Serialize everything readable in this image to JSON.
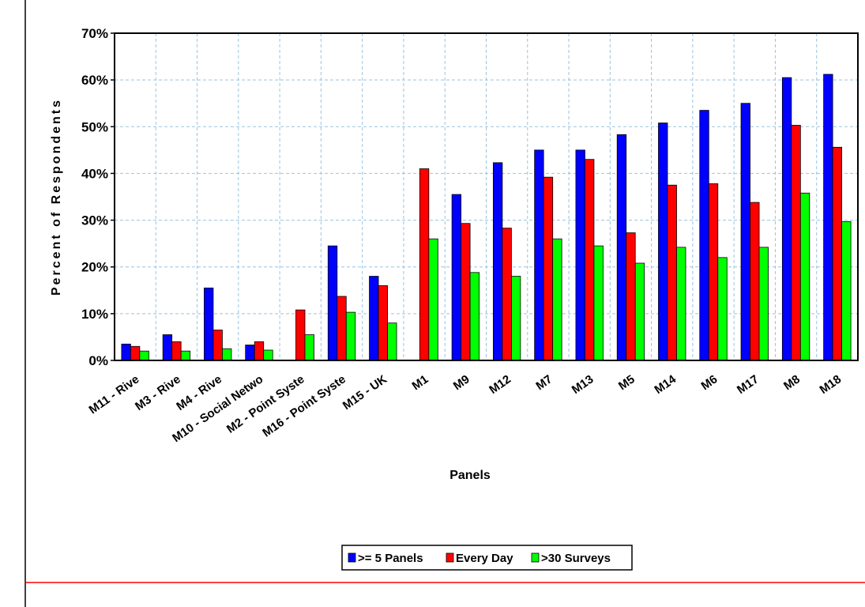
{
  "chart_data": {
    "type": "bar",
    "x_label": "Panels",
    "y_label": "Percent of Respondents",
    "categories": [
      "M11 - Rive",
      "M3 - Rive",
      "M4 - Rive",
      "M10 - Social Netwo",
      "M2 - Point Syste",
      "M16 - Point Syste",
      "M15 - UK",
      "M1",
      "M9",
      "M12",
      "M7",
      "M13",
      "M5",
      "M14",
      "M6",
      "M17",
      "M8",
      "M18"
    ],
    "series": [
      {
        "name": ">= 5 Panels",
        "color": "#0000ff",
        "values": [
          3.5,
          5.5,
          15.5,
          3.3,
          null,
          24.5,
          18,
          null,
          35.5,
          42.3,
          45,
          45,
          48.3,
          50.8,
          53.5,
          55,
          60.5,
          61.2
        ]
      },
      {
        "name": "Every Day",
        "color": "#ff0000",
        "values": [
          3,
          4,
          6.5,
          4,
          10.8,
          13.7,
          16,
          41,
          29.3,
          28.3,
          39.2,
          43,
          27.3,
          37.5,
          37.8,
          33.8,
          50.3,
          45.6
        ]
      },
      {
        "name": ">30 Surveys",
        "color": "#00ff00",
        "values": [
          2,
          2,
          2.5,
          2.2,
          5.5,
          10.3,
          8,
          26,
          18.8,
          18,
          26,
          24.5,
          20.8,
          24.2,
          22,
          24.2,
          35.8,
          29.7
        ]
      }
    ],
    "ylim": [
      0,
      70
    ],
    "yticks": [
      {
        "value": 0,
        "label": "0%"
      },
      {
        "value": 10,
        "label": "10%"
      },
      {
        "value": 20,
        "label": "20%"
      },
      {
        "value": 30,
        "label": "30%"
      },
      {
        "value": 40,
        "label": "40%"
      },
      {
        "value": 50,
        "label": "50%"
      },
      {
        "value": 60,
        "label": "60%"
      },
      {
        "value": 70,
        "label": "70%"
      }
    ],
    "grid": true,
    "legend": "bottom"
  }
}
